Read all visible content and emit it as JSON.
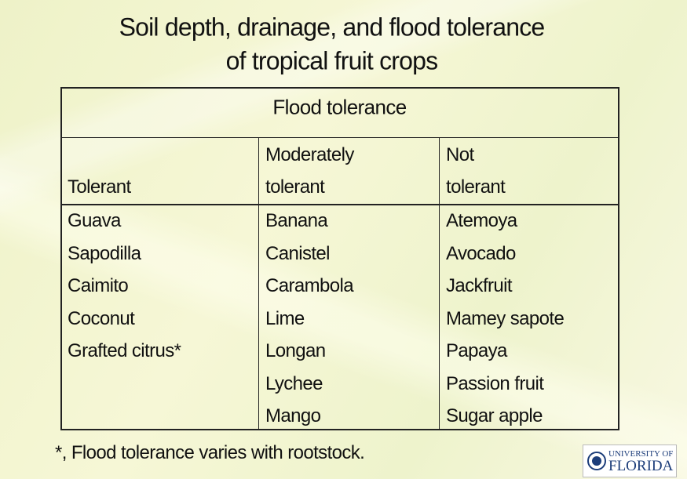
{
  "title": [
    "Soil depth, drainage, and flood tolerance",
    "of tropical fruit crops"
  ],
  "table": {
    "caption": "Flood tolerance",
    "columns": [
      {
        "header": [
          "Tolerant"
        ],
        "items": [
          "Guava",
          "Sapodilla",
          "Caimito",
          "Coconut",
          "Grafted citrus*"
        ]
      },
      {
        "header": [
          "Moderately",
          "tolerant"
        ],
        "items": [
          "Banana",
          "Canistel",
          "Carambola",
          "Lime",
          "Longan",
          "Lychee",
          "Mango"
        ]
      },
      {
        "header": [
          "Not",
          "tolerant"
        ],
        "items": [
          "Atemoya",
          "Avocado",
          "Jackfruit",
          "Mamey sapote",
          "Papaya",
          "Passion fruit",
          "Sugar apple"
        ]
      }
    ]
  },
  "footnote": "*, Flood tolerance varies with rootstock.",
  "logo": [
    "UNIVERSITY OF",
    "FLORIDA"
  ]
}
